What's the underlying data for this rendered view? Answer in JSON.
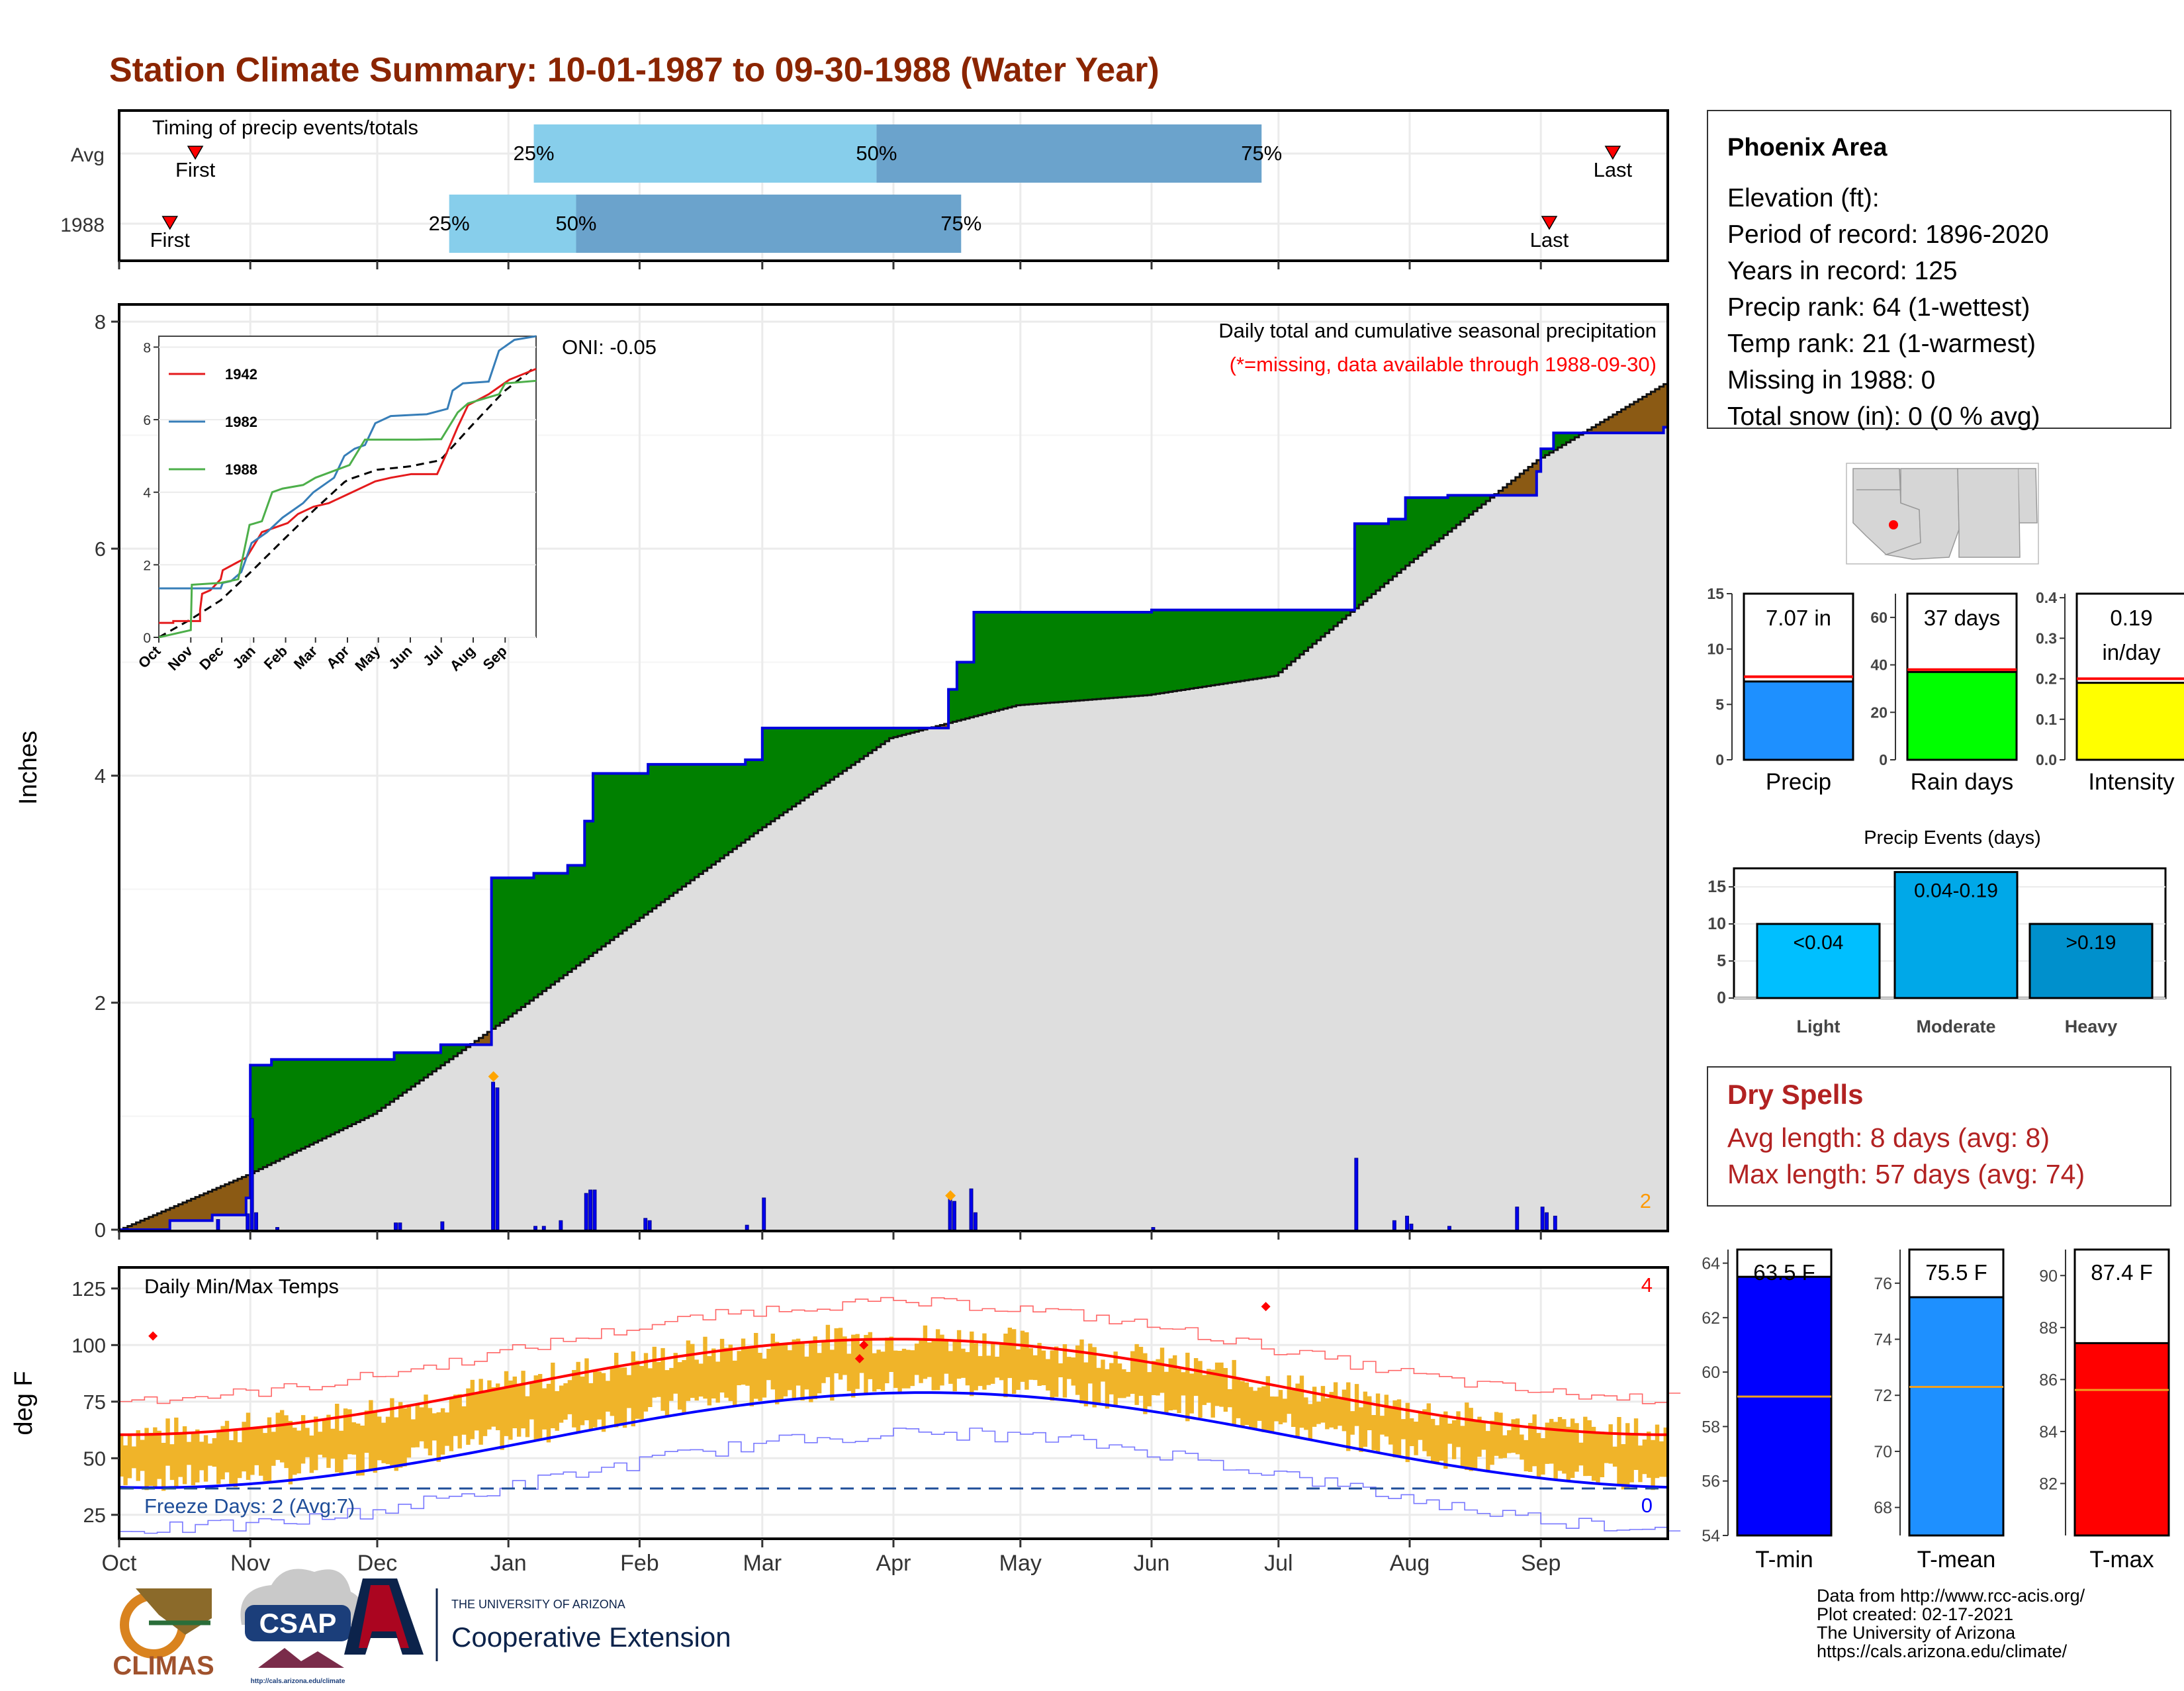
{
  "title": "Station Climate Summary: 10-01-1987 to 09-30-1988 (Water Year)",
  "colors": {
    "title": "#8b2500",
    "precip_green": "#008000",
    "precip_line": "#0000dd",
    "gray_fill": "#dedede",
    "brown_fill": "#8b5a14",
    "light_blue": "#87ceeb",
    "steel_blue": "#6ba3cc",
    "tmax_red": "#ff0000",
    "tmin_blue": "#0000ff",
    "temp_bar": "#f0b429",
    "dry_spell": "#b22222"
  },
  "timing": {
    "title": "Timing of precip events/totals",
    "rows": [
      {
        "label": "Avg",
        "first": "First",
        "p25": "25%",
        "p50": "50%",
        "p75": "75%",
        "last": "Last",
        "first_doy": 18,
        "p25_doy": 98,
        "p50_doy": 179,
        "p75_doy": 270,
        "last_doy": 353
      },
      {
        "label": "1988",
        "first": "First",
        "p25": "25%",
        "p50": "50%",
        "p75": "75%",
        "last": "Last",
        "first_doy": 12,
        "p25_doy": 78,
        "p50_doy": 108,
        "p75_doy": 199,
        "last_doy": 338
      }
    ]
  },
  "month_labels": [
    "Oct",
    "Nov",
    "Dec",
    "Jan",
    "Feb",
    "Mar",
    "Apr",
    "May",
    "Jun",
    "Jul",
    "Aug",
    "Sep"
  ],
  "precip_panel": {
    "ylabel": "Inches",
    "yticks": [
      "0",
      "2",
      "4",
      "6",
      "8"
    ],
    "annotation_title": "Daily total and cumulative seasonal precipitation",
    "annotation_missing": "(*=missing, data available through 1988-09-30)",
    "oni": "ONI: -0.05",
    "count_label": "2"
  },
  "inset": {
    "yticks": [
      "0",
      "2",
      "4",
      "6",
      "8"
    ],
    "xticks": [
      "Oct",
      "Nov",
      "Dec",
      "Jan",
      "Feb",
      "Mar",
      "Apr",
      "May",
      "Jun",
      "Jul",
      "Aug",
      "Sep"
    ],
    "legend": [
      "1942",
      "1982",
      "1988"
    ]
  },
  "temp_panel": {
    "ylabel": "deg F",
    "title": "Daily Min/Max Temps",
    "yticks": [
      "25",
      "50",
      "75",
      "100",
      "125"
    ],
    "freeze": "Freeze Days: 2 (Avg:7)",
    "hot_count": "4",
    "cold_count": "0"
  },
  "station": {
    "name": "Phoenix Area",
    "lines": [
      "Elevation (ft):",
      "Period of record: 1896-2020",
      "Years in record: 125",
      "Precip rank: 64 (1-wettest)",
      "Temp rank: 21 (1-warmest)",
      "Missing in 1988: 0",
      "Total snow (in): 0 (0 % avg)"
    ]
  },
  "summary_bars": [
    {
      "label": "Precip",
      "value_label": "7.07 in",
      "value_label2": "",
      "value": 7.07,
      "avg": 7.5,
      "ymax": 15,
      "yticks": [
        "0",
        "5",
        "10",
        "15"
      ],
      "color": "#1e90ff"
    },
    {
      "label": "Rain days",
      "value_label": "37 days",
      "value_label2": "",
      "value": 37,
      "avg": 38,
      "ymax": 70,
      "yticks": [
        "0",
        "20",
        "40",
        "60"
      ],
      "color": "#00ff00"
    },
    {
      "label": "Intensity",
      "value_label": "0.19",
      "value_label2": "in/day",
      "value": 0.19,
      "avg": 0.2,
      "ymax": 0.41,
      "yticks": [
        "0.0",
        "0.1",
        "0.2",
        "0.3",
        "0.4"
      ],
      "color": "#ffff00"
    }
  ],
  "events": {
    "title": "Precip Events (days)",
    "yticks": [
      "0",
      "5",
      "10",
      "15"
    ],
    "bars": [
      {
        "label": "Light",
        "value_label": "<0.04",
        "value": 10,
        "color": "#00bfff"
      },
      {
        "label": "Moderate",
        "value_label": "0.04-0.19",
        "value": 17,
        "color": "#00a8e8"
      },
      {
        "label": "Heavy",
        "value_label": ">0.19",
        "value": 10,
        "color": "#0090cc"
      }
    ]
  },
  "dry_spells": {
    "title": "Dry Spells",
    "avg": "Avg length: 8 days (avg: 8)",
    "max": "Max length: 57 days (avg: 74)"
  },
  "temp_bars": [
    {
      "label": "T-min",
      "value_label": "63.5 F",
      "value": 63.5,
      "avg": 59.1,
      "ymin": 54,
      "ymax": 64.5,
      "yticks": [
        "54",
        "56",
        "58",
        "60",
        "62",
        "64"
      ],
      "color": "#0000ff"
    },
    {
      "label": "T-mean",
      "value_label": "75.5 F",
      "value": 75.5,
      "avg": 72.3,
      "ymin": 67,
      "ymax": 77.2,
      "yticks": [
        "68",
        "70",
        "72",
        "74",
        "76"
      ],
      "color": "#1e90ff"
    },
    {
      "label": "T-max",
      "value_label": "87.4 F",
      "value": 87.4,
      "avg": 85.6,
      "ymin": 80,
      "ymax": 91,
      "yticks": [
        "82",
        "84",
        "86",
        "88",
        "90"
      ],
      "color": "#ff0000"
    }
  ],
  "footer": {
    "lines": [
      "Data from http://www.rcc-acis.org/",
      "Plot created: 02-17-2021",
      "The University of Arizona",
      "https://cals.arizona.edu/climate/"
    ],
    "logo_climas": "CLIMAS",
    "logo_csap": "CSAP",
    "logo_csap_url": "http://cals.arizona.edu/climate",
    "ua_small": "THE UNIVERSITY OF ARIZONA",
    "ua_big": "Cooperative Extension"
  },
  "chart_data": {
    "type": "area",
    "title": "Station Climate Summary: 10-01-1987 to 09-30-1988 (Water Year)",
    "ylabel": "Inches",
    "ylim": [
      0,
      8.2
    ],
    "cumulative_1988_steps": [
      {
        "date": "1987-10-01",
        "value": 0.0
      },
      {
        "date": "1987-10-13",
        "value": 0.08
      },
      {
        "date": "1987-10-23",
        "value": 0.13
      },
      {
        "date": "1987-10-31",
        "value": 0.28
      },
      {
        "date": "1987-11-01",
        "value": 1.45
      },
      {
        "date": "1987-11-06",
        "value": 1.5
      },
      {
        "date": "1987-12-05",
        "value": 1.56
      },
      {
        "date": "1987-12-16",
        "value": 1.63
      },
      {
        "date": "1987-12-28",
        "value": 3.1
      },
      {
        "date": "1988-01-07",
        "value": 3.14
      },
      {
        "date": "1988-01-15",
        "value": 3.21
      },
      {
        "date": "1988-01-19",
        "value": 3.6
      },
      {
        "date": "1988-01-21",
        "value": 4.02
      },
      {
        "date": "1988-02-03",
        "value": 4.1
      },
      {
        "date": "1988-02-26",
        "value": 4.14
      },
      {
        "date": "1988-03-01",
        "value": 4.42
      },
      {
        "date": "1988-04-14",
        "value": 4.76
      },
      {
        "date": "1988-04-16",
        "value": 5.0
      },
      {
        "date": "1988-04-20",
        "value": 5.44
      },
      {
        "date": "1988-06-01",
        "value": 5.46
      },
      {
        "date": "1988-07-19",
        "value": 6.22
      },
      {
        "date": "1988-07-27",
        "value": 6.26
      },
      {
        "date": "1988-07-31",
        "value": 6.45
      },
      {
        "date": "1988-08-10",
        "value": 6.47
      },
      {
        "date": "1988-08-31",
        "value": 6.68
      },
      {
        "date": "1988-09-01",
        "value": 6.88
      },
      {
        "date": "1988-09-04",
        "value": 7.02
      },
      {
        "date": "1988-09-30",
        "value": 7.07
      }
    ],
    "daily_bars": [
      {
        "date": "1987-10-24",
        "value": 0.09
      },
      {
        "date": "1987-10-31",
        "value": 0.14
      },
      {
        "date": "1987-11-01",
        "value": 0.98
      },
      {
        "date": "1987-11-02",
        "value": 0.15
      },
      {
        "date": "1987-11-07",
        "value": 0.02
      },
      {
        "date": "1987-12-05",
        "value": 0.06
      },
      {
        "date": "1987-12-06",
        "value": 0.06
      },
      {
        "date": "1987-12-16",
        "value": 0.07
      },
      {
        "date": "1987-12-28",
        "value": 1.3
      },
      {
        "date": "1987-12-29",
        "value": 1.25
      },
      {
        "date": "1988-01-07",
        "value": 0.03
      },
      {
        "date": "1988-01-09",
        "value": 0.03
      },
      {
        "date": "1988-01-13",
        "value": 0.08
      },
      {
        "date": "1988-01-19",
        "value": 0.32
      },
      {
        "date": "1988-01-20",
        "value": 0.35
      },
      {
        "date": "1988-01-21",
        "value": 0.35
      },
      {
        "date": "1988-02-02",
        "value": 0.1
      },
      {
        "date": "1988-02-03",
        "value": 0.08
      },
      {
        "date": "1988-02-26",
        "value": 0.04
      },
      {
        "date": "1988-03-01",
        "value": 0.28
      },
      {
        "date": "1988-04-14",
        "value": 0.28
      },
      {
        "date": "1988-04-15",
        "value": 0.25
      },
      {
        "date": "1988-04-19",
        "value": 0.36
      },
      {
        "date": "1988-04-20",
        "value": 0.15
      },
      {
        "date": "1988-06-01",
        "value": 0.02
      },
      {
        "date": "1988-07-19",
        "value": 0.63
      },
      {
        "date": "1988-07-28",
        "value": 0.08
      },
      {
        "date": "1988-07-31",
        "value": 0.12
      },
      {
        "date": "1988-08-01",
        "value": 0.05
      },
      {
        "date": "1988-08-10",
        "value": 0.03
      },
      {
        "date": "1988-08-26",
        "value": 0.2
      },
      {
        "date": "1988-09-01",
        "value": 0.2
      },
      {
        "date": "1988-09-02",
        "value": 0.15
      },
      {
        "date": "1988-09-04",
        "value": 0.12
      }
    ],
    "avg_cumulative": [
      {
        "date": "1987-10-01",
        "value": 0.0
      },
      {
        "date": "1987-10-31",
        "value": 0.48
      },
      {
        "date": "1987-11-30",
        "value": 1.02
      },
      {
        "date": "1987-12-31",
        "value": 1.85
      },
      {
        "date": "1988-01-31",
        "value": 2.72
      },
      {
        "date": "1988-02-29",
        "value": 3.52
      },
      {
        "date": "1988-03-31",
        "value": 4.33
      },
      {
        "date": "1988-04-30",
        "value": 4.62
      },
      {
        "date": "1988-05-31",
        "value": 4.71
      },
      {
        "date": "1988-06-30",
        "value": 4.88
      },
      {
        "date": "1988-07-31",
        "value": 5.85
      },
      {
        "date": "1988-08-31",
        "value": 6.78
      },
      {
        "date": "1988-09-30",
        "value": 7.45
      }
    ],
    "record_events": [
      {
        "date": "1987-12-28",
        "value": 1.35
      },
      {
        "date": "1988-04-14",
        "value": 0.3
      }
    ]
  }
}
